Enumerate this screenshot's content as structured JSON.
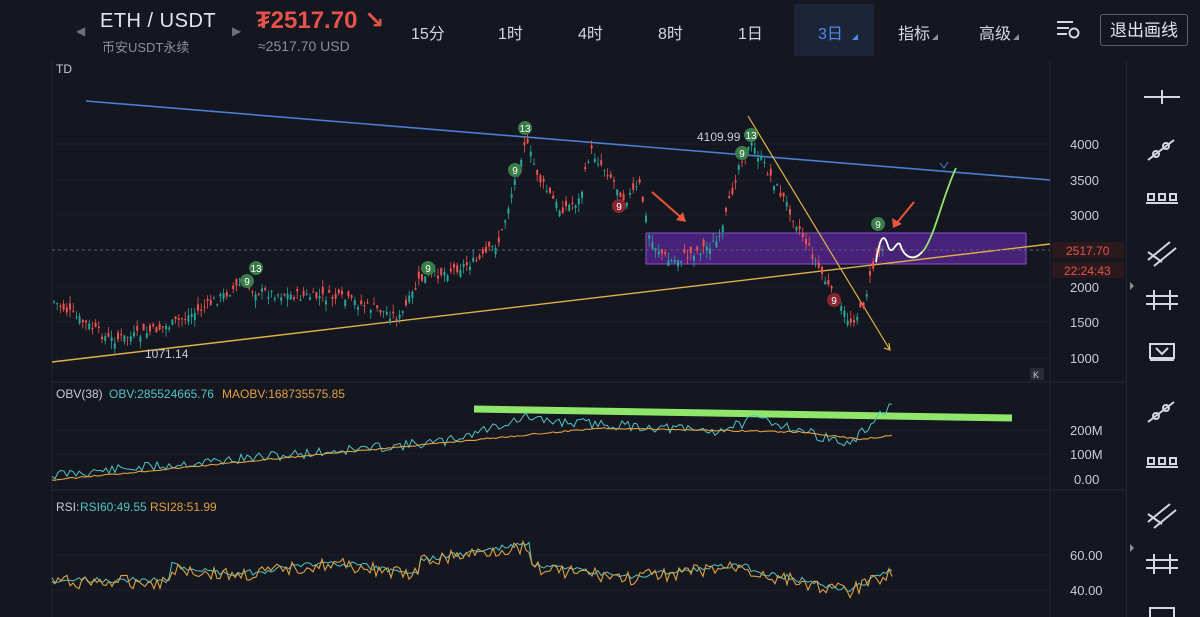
{
  "header": {
    "symbol": "ETH / USDT",
    "exchange": "币安USDT永续",
    "price": "₮2517.70 ↘",
    "price_converted": "≈2517.70 USD",
    "timeframes": [
      "15分",
      "1时",
      "4时",
      "8时",
      "1日"
    ],
    "active_timeframe": "3日",
    "indicators_label": "指标",
    "advanced_label": "高级",
    "exit_drawing_label": "退出画线"
  },
  "main_chart": {
    "indicator_label": "TD",
    "price_axis_ticks": [
      "4000",
      "3500",
      "3000",
      "2500",
      "2000",
      "1500",
      "1000"
    ],
    "current_price_tag": "2517.70",
    "countdown_tag": "22:24:43",
    "high_label": "4109.99",
    "low_label": "1071.14",
    "td_markers": [
      "13",
      "9",
      "13",
      "9",
      "9",
      "9",
      "13",
      "9",
      "9",
      "9"
    ],
    "colors": {
      "up": "#26a69a",
      "down": "#ef5350",
      "trend_blue": "#4a7fd4",
      "trend_yellow": "#e0b24a",
      "zone": "#6a2fa0",
      "projection": "#8fe66a"
    }
  },
  "obv_panel": {
    "title": "OBV(38)",
    "obv_value": "OBV:285524665.76",
    "maobv_value": "MAOBV:168735575.85",
    "axis_ticks": [
      "200M",
      "100M",
      "0.00"
    ]
  },
  "rsi_panel": {
    "title": "RSI:",
    "rsi60": "RSI60:49.55",
    "rsi28": "RSI28:51.99",
    "axis_ticks": [
      "60.00",
      "40.00"
    ]
  },
  "tools": [
    "horizontal-line-tool",
    "trend-line-tool",
    "rect-tool",
    "parallel-channel-tool",
    "fib-tool",
    "shape-tool"
  ]
}
